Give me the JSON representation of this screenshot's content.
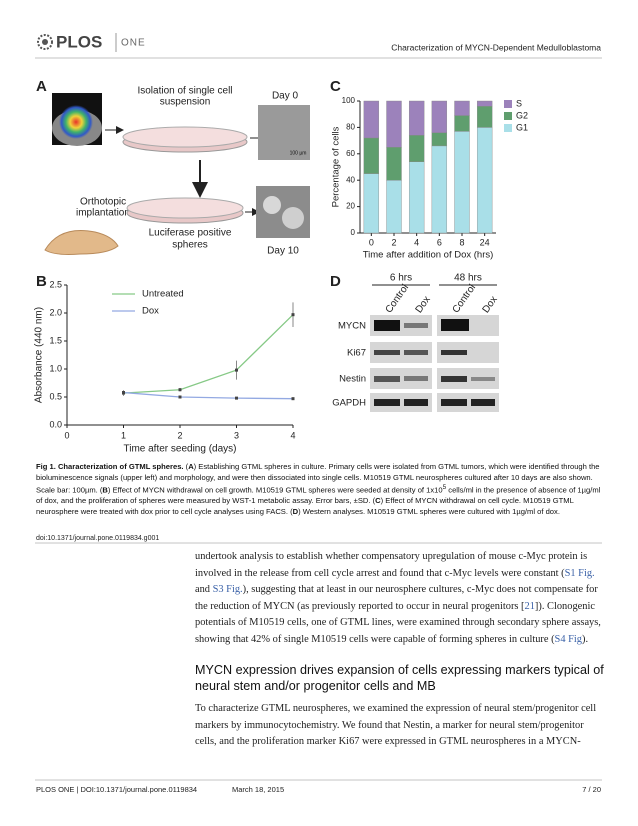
{
  "header": {
    "journal": "PLOS",
    "journal_sub": "ONE",
    "running_title": "Characterization of MYCN-Dependent Medulloblastoma"
  },
  "figure": {
    "panel_labels": [
      "A",
      "B",
      "C",
      "D"
    ],
    "panel_a": {
      "step1": "Isolation of single cell",
      "step1b": "suspension",
      "day0": "Day 0",
      "scale": "100 µm",
      "step2": "Orthotopic",
      "step2b": "implantation",
      "step3": "Luciferase positive",
      "step3b": "spheres",
      "day10": "Day 10"
    },
    "panel_d": {
      "groups": [
        "6 hrs",
        "48 hrs"
      ],
      "lanes": [
        "Control",
        "Dox",
        "Control",
        "Dox"
      ],
      "rows": [
        "MYCN",
        "Ki67",
        "Nestin",
        "GAPDH"
      ]
    },
    "caption": [
      "Fig 1. Characterization of GTML spheres.",
      " (",
      "A",
      ") Establishing GTML spheres in culture. Primary cells were isolated from GTML tumors, which were identified through the bioluminescence signals (upper left) and morphology, and were then dissociated into single cells. M10519 GTML neurospheres cultured after 10 days are also shown. Scale bar: 100µm. (",
      "B",
      ") Effect of MYCN withdrawal on cell growth. M10519 GTML spheres were seeded at density of 1x10",
      "5",
      " cells/ml in the presence of absence of 1µg/ml of dox, and the proliferation of spheres were measured by WST-1 metabolic assay. Error bars, ±SD. (",
      "C",
      ") Effect of MYCN withdrawal on cell cycle. M10519 GTML neurosphere were treated with dox prior to cell cycle analyses using FACS. (",
      "D",
      ") Western analyses. M10519 GTML spheres were cultured with 1µg/ml of dox."
    ],
    "doi": "doi:10.1371/journal.pone.0119834.g001"
  },
  "chart_data": [
    {
      "type": "stacked_bar",
      "x_label": "Time after addition of Dox (hrs)",
      "y_label": "Percentage of cells",
      "categories": [
        "0",
        "2",
        "4",
        "6",
        "8",
        "24"
      ],
      "series": [
        {
          "name": "G1",
          "color": "#a9dfe8",
          "values": [
            45,
            40,
            54,
            66,
            77,
            80
          ]
        },
        {
          "name": "G2",
          "color": "#5f9e6e",
          "values": [
            27,
            25,
            20,
            10,
            12,
            16
          ]
        },
        {
          "name": "S",
          "color": "#9c82bb",
          "values": [
            28,
            35,
            26,
            24,
            11,
            4
          ]
        }
      ],
      "ylim": [
        0,
        100
      ],
      "yticks": [
        0,
        20,
        40,
        60,
        80,
        100
      ]
    },
    {
      "type": "line",
      "x_label": "Time after seeding (days)",
      "y_label": "Absorbance (440 nm)",
      "x": [
        1,
        2,
        3,
        4
      ],
      "series": [
        {
          "name": "Untreated",
          "color": "#86c986",
          "values": [
            0.57,
            0.63,
            0.98,
            1.97
          ],
          "errors": [
            0.05,
            0.03,
            0.17,
            0.22
          ]
        },
        {
          "name": "Dox",
          "color": "#93a9e2",
          "values": [
            0.58,
            0.5,
            0.48,
            0.47
          ],
          "errors": [
            0.03,
            0.02,
            0.01,
            0.01
          ]
        }
      ],
      "xlim": [
        0,
        4
      ],
      "xticks": [
        0,
        1,
        2,
        3,
        4
      ],
      "ylim": [
        0,
        2.5
      ],
      "yticks": [
        {
          "value": 0,
          "label": "0.0"
        },
        0.5,
        {
          "value": 1,
          "label": "1.0"
        },
        1.5,
        {
          "value": 2,
          "label": "2.0"
        },
        2.5
      ]
    }
  ],
  "body": {
    "para1": [
      "undertook analysis to establish whether compensatory upregulation of mouse c-Myc protein is involved in the release from cell cycle arrest and found that c-Myc levels were constant (",
      "S1 Fig.",
      " and ",
      "S3 Fig.",
      "), suggesting that at least in our neurosphere cultures, c-Myc does not compensate for the reduction of MYCN (as previously reported to occur in neural progenitors [",
      "21",
      "]). Clonogenic potentials of M10519 cells, one of GTML lines, were examined through secondary sphere assays, showing that 42% of single M10519 cells were capable of forming spheres in culture (",
      "S4 Fig",
      ")."
    ],
    "heading": "MYCN expression drives expansion of cells expressing markers typical of neural stem and/or progenitor cells and MB",
    "para2": "To characterize GTML neurospheres, we examined the expression of neural stem/progenitor cell markers by immunocytochemistry. We found that Nestin, a marker for neural stem/progenitor cells, and the proliferation marker Ki67 were expressed in GTML neurospheres in a MYCN-"
  },
  "footer": {
    "citation": "PLOS ONE | DOI:10.1371/journal.pone.0119834",
    "date": "March 18, 2015",
    "page": "7 / 20"
  }
}
